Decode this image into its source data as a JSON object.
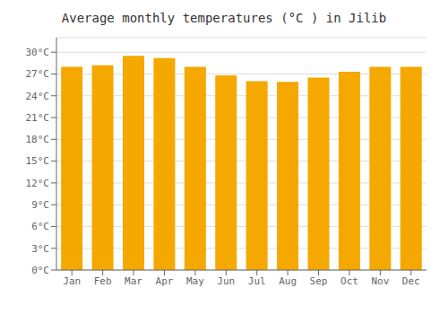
{
  "chart_data": {
    "type": "bar",
    "title": "Average monthly temperatures (°C ) in Jilib",
    "categories": [
      "Jan",
      "Feb",
      "Mar",
      "Apr",
      "May",
      "Jun",
      "Jul",
      "Aug",
      "Sep",
      "Oct",
      "Nov",
      "Dec"
    ],
    "values": [
      28.0,
      28.2,
      29.5,
      29.2,
      28.0,
      26.8,
      26.0,
      25.9,
      26.5,
      27.3,
      28.0,
      28.0
    ],
    "color": "#F5A800",
    "ylim": [
      0,
      32
    ],
    "yticks": [
      {
        "value": 0,
        "label": "0°C"
      },
      {
        "value": 3,
        "label": "3°C"
      },
      {
        "value": 6,
        "label": "6°C"
      },
      {
        "value": 9,
        "label": "9°C"
      },
      {
        "value": 12,
        "label": "12°C"
      },
      {
        "value": 15,
        "label": "15°C"
      },
      {
        "value": 18,
        "label": "18°C"
      },
      {
        "value": 21,
        "label": "21°C"
      },
      {
        "value": 24,
        "label": "24°C"
      },
      {
        "value": 27,
        "label": "27°C"
      },
      {
        "value": 30,
        "label": "30°C"
      }
    ],
    "grid": true
  }
}
